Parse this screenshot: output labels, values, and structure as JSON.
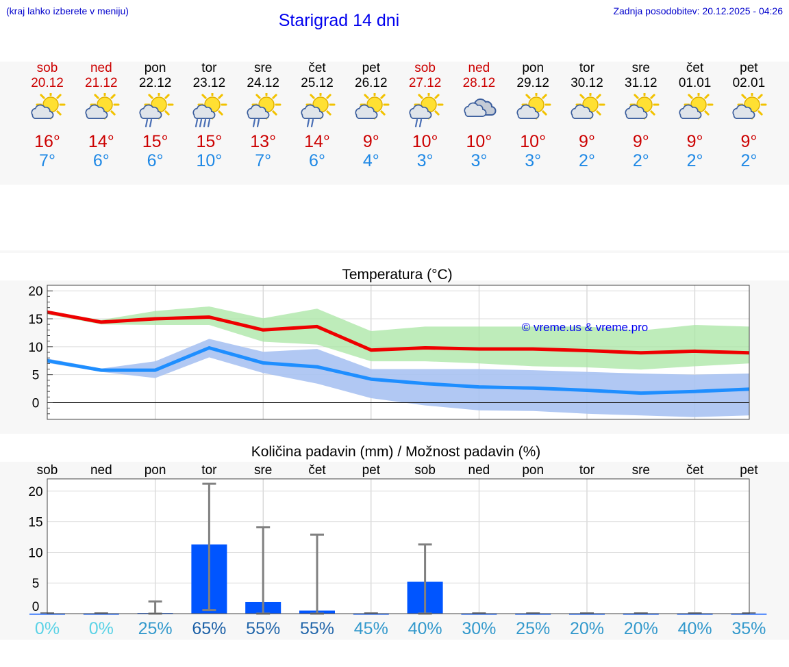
{
  "header": {
    "hint": "(kraj lahko izberete v meniju)",
    "title": "Starigrad 14 dni",
    "updated": "Zadnja posodobitev: 20.12.2025 - 04:26"
  },
  "colors": {
    "weekend": "#cc0000",
    "tmax": "#cc0000",
    "tmin": "#1e88e5",
    "max_line": "#ee0000",
    "min_line": "#1e8eff",
    "max_band": "#a8e6a3",
    "min_band": "#a9c2f2",
    "overlap_band": "#84c6a8",
    "bar": "#0055ff",
    "error_bar": "#808080"
  },
  "days": [
    {
      "name": "sob",
      "date": "20.12",
      "weekend": true,
      "icon": "sun-cloud-icon",
      "tmax": "16°",
      "tmin": "7°"
    },
    {
      "name": "ned",
      "date": "21.12",
      "weekend": true,
      "icon": "sun-cloud-icon",
      "tmax": "14°",
      "tmin": "6°"
    },
    {
      "name": "pon",
      "date": "22.12",
      "weekend": false,
      "icon": "sun-cloud-rain-icon",
      "tmax": "15°",
      "tmin": "6°"
    },
    {
      "name": "tor",
      "date": "23.12",
      "weekend": false,
      "icon": "sun-cloud-heavy-rain-icon",
      "tmax": "15°",
      "tmin": "10°"
    },
    {
      "name": "sre",
      "date": "24.12",
      "weekend": false,
      "icon": "sun-cloud-rain-icon",
      "tmax": "13°",
      "tmin": "7°"
    },
    {
      "name": "čet",
      "date": "25.12",
      "weekend": false,
      "icon": "sun-cloud-rain-icon",
      "tmax": "14°",
      "tmin": "6°"
    },
    {
      "name": "pet",
      "date": "26.12",
      "weekend": false,
      "icon": "sun-cloud-icon",
      "tmax": "9°",
      "tmin": "4°"
    },
    {
      "name": "sob",
      "date": "27.12",
      "weekend": true,
      "icon": "sun-cloud-rain-icon",
      "tmax": "10°",
      "tmin": "3°"
    },
    {
      "name": "ned",
      "date": "28.12",
      "weekend": true,
      "icon": "cloud-icon",
      "tmax": "10°",
      "tmin": "3°"
    },
    {
      "name": "pon",
      "date": "29.12",
      "weekend": false,
      "icon": "sun-cloud-icon",
      "tmax": "10°",
      "tmin": "3°"
    },
    {
      "name": "tor",
      "date": "30.12",
      "weekend": false,
      "icon": "sun-cloud-icon",
      "tmax": "9°",
      "tmin": "2°"
    },
    {
      "name": "sre",
      "date": "31.12",
      "weekend": false,
      "icon": "sun-cloud-icon",
      "tmax": "9°",
      "tmin": "2°"
    },
    {
      "name": "čet",
      "date": "01.01",
      "weekend": false,
      "icon": "sun-cloud-icon",
      "tmax": "9°",
      "tmin": "2°"
    },
    {
      "name": "pet",
      "date": "02.01",
      "weekend": false,
      "icon": "sun-cloud-icon",
      "tmax": "9°",
      "tmin": "2°"
    }
  ],
  "chart_data": [
    {
      "type": "line",
      "title": "Temperatura (°C)",
      "watermark": "© vreme.us & vreme.pro",
      "ylim": [
        -3,
        21
      ],
      "yticks": [
        0,
        5,
        10,
        15,
        20
      ],
      "grid": true,
      "series": [
        {
          "name": "max",
          "values": [
            16.2,
            14.4,
            15.0,
            15.3,
            13.0,
            13.6,
            9.4,
            9.8,
            9.6,
            9.6,
            9.3,
            8.9,
            9.2,
            8.9
          ],
          "band_low": [
            15.8,
            14.0,
            13.9,
            13.9,
            10.9,
            10.4,
            7.4,
            7.4,
            7.0,
            6.5,
            6.3,
            5.9,
            6.5,
            7.0
          ],
          "band_high": [
            16.4,
            14.8,
            16.4,
            17.2,
            15.1,
            16.8,
            12.8,
            13.6,
            13.6,
            13.6,
            13.6,
            12.9,
            13.9,
            13.6
          ]
        },
        {
          "name": "min",
          "values": [
            7.5,
            5.8,
            5.8,
            9.8,
            7.1,
            6.4,
            4.2,
            3.4,
            2.8,
            2.6,
            2.2,
            1.7,
            2.0,
            2.4
          ],
          "band_low": [
            7.1,
            5.5,
            4.4,
            8.1,
            5.3,
            3.4,
            0.8,
            -0.5,
            -1.4,
            -1.5,
            -2.0,
            -2.3,
            -2.6,
            -2.3
          ],
          "band_high": [
            7.9,
            6.1,
            7.4,
            11.4,
            9.1,
            9.6,
            6.0,
            6.0,
            6.0,
            5.8,
            5.5,
            5.2,
            5.0,
            5.2
          ]
        }
      ]
    },
    {
      "type": "bar",
      "title": "Količina padavin (mm) / Možnost padavin (%)",
      "categories": [
        "sob",
        "ned",
        "pon",
        "tor",
        "sre",
        "čet",
        "pet",
        "sob",
        "ned",
        "pon",
        "tor",
        "sre",
        "čet",
        "pet"
      ],
      "ylim": [
        0,
        22
      ],
      "yticks": [
        0,
        5,
        10,
        15,
        20
      ],
      "grid": true,
      "values": [
        0,
        0,
        0.1,
        11.3,
        1.9,
        0.5,
        0,
        5.2,
        0,
        0,
        0,
        0,
        0,
        0
      ],
      "error_low": [
        0,
        0,
        0,
        0.6,
        0,
        0,
        0,
        0,
        0,
        0,
        0,
        0,
        0,
        0
      ],
      "error_high": [
        0,
        0,
        2.0,
        21.2,
        14.1,
        12.9,
        0,
        11.3,
        0,
        0,
        0,
        0,
        0,
        0
      ],
      "probability": [
        "0%",
        "0%",
        "25%",
        "65%",
        "55%",
        "55%",
        "45%",
        "40%",
        "30%",
        "25%",
        "20%",
        "20%",
        "40%",
        "35%"
      ],
      "probability_colors": [
        "#5ad2e6",
        "#5ad2e6",
        "#3399cc",
        "#1a5fa6",
        "#2266aa",
        "#2266aa",
        "#3399cc",
        "#3399cc",
        "#3399cc",
        "#3399cc",
        "#3399cc",
        "#3399cc",
        "#3399cc",
        "#3399cc"
      ]
    }
  ]
}
